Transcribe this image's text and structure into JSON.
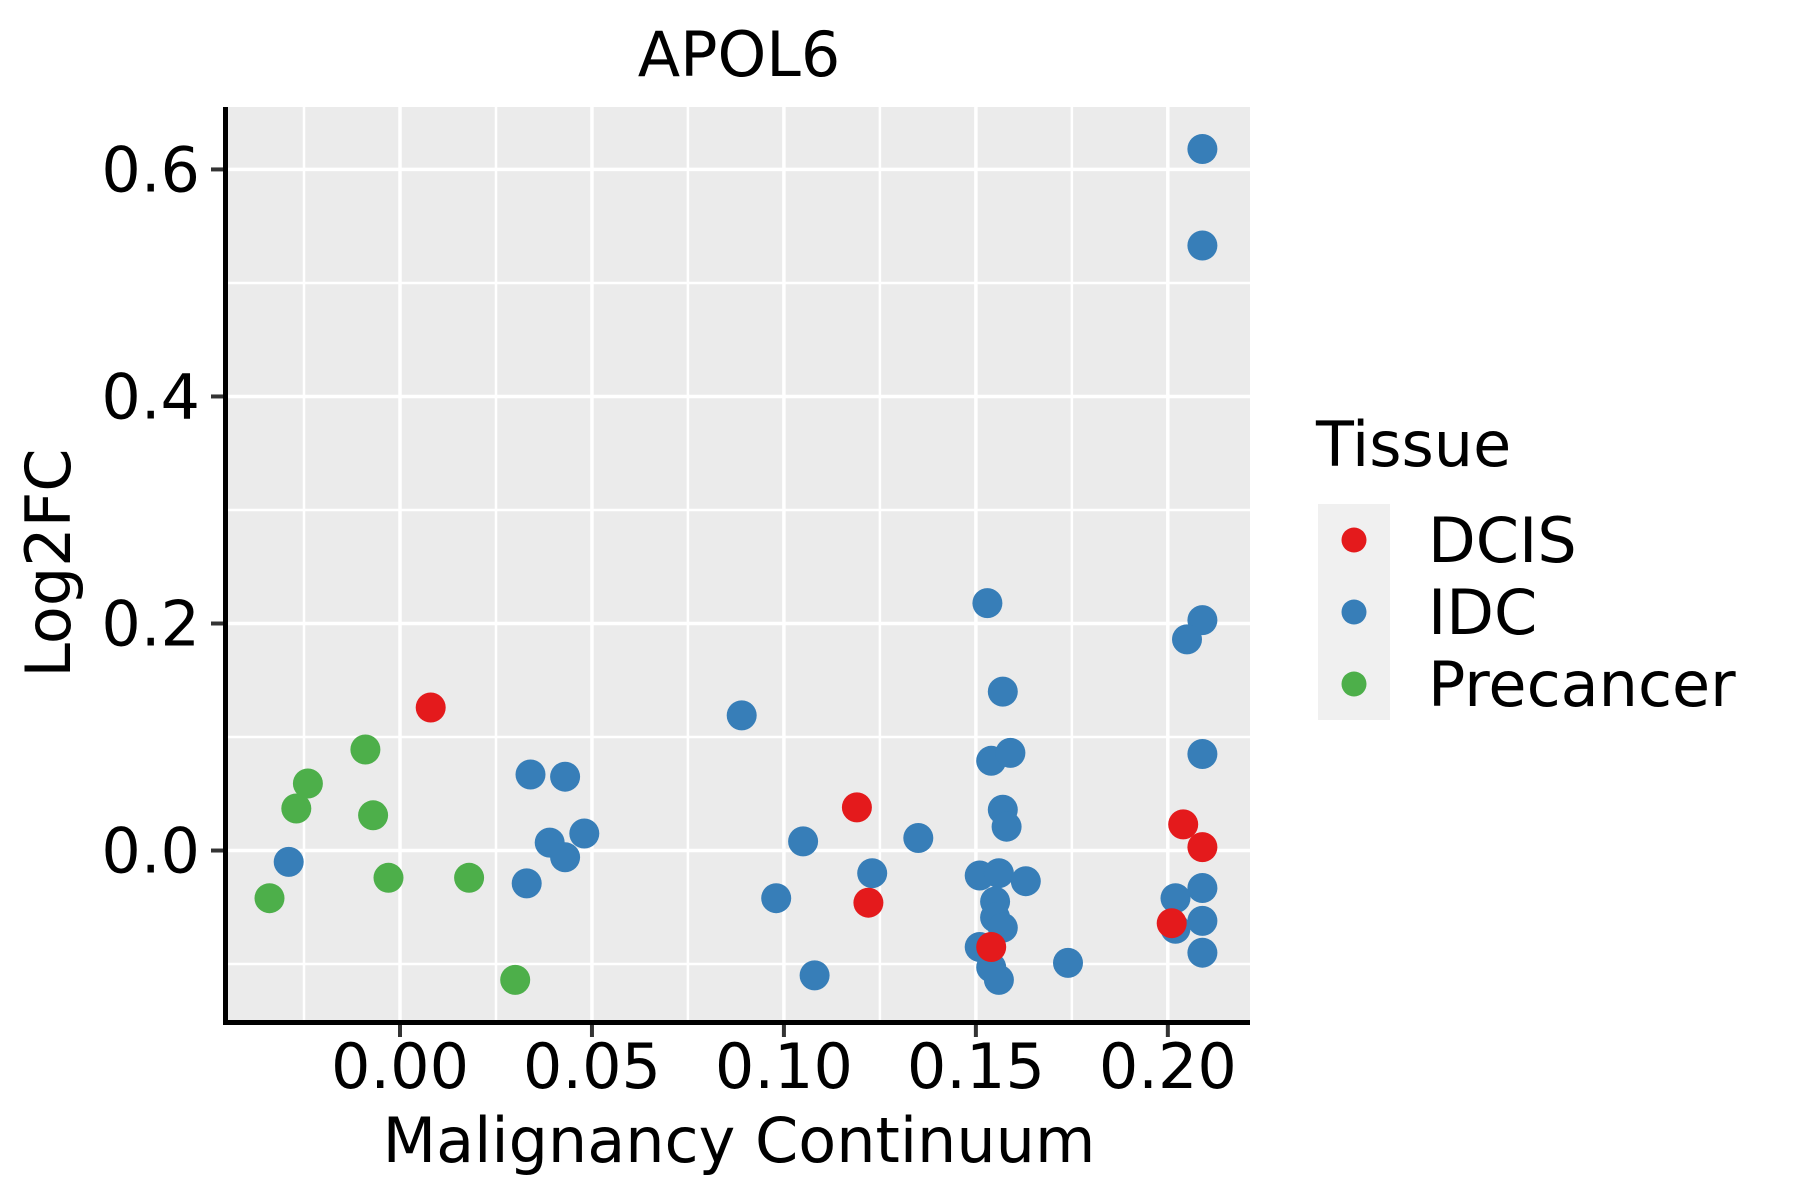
{
  "title": "APOL6",
  "axes": {
    "x_label": "Malignancy Continuum",
    "y_label": "Log2FC"
  },
  "legend": {
    "title": "Tissue",
    "items": [
      {
        "label": "DCIS",
        "color": "#E41A1C"
      },
      {
        "label": "IDC",
        "color": "#377EB8"
      },
      {
        "label": "Precancer",
        "color": "#4DAF4A"
      }
    ]
  },
  "colors": {
    "panel_bg": "#EBEBEB",
    "grid": "#FFFFFF",
    "spine": "#000000",
    "tick": "#333333",
    "legend_key_bg": "#F0F0F0",
    "dcis": "#E41A1C",
    "idc": "#377EB8",
    "precancer": "#4DAF4A"
  },
  "chart_data": {
    "type": "scatter",
    "title": "APOL6",
    "xlabel": "Malignancy Continuum",
    "ylabel": "Log2FC",
    "xlim": [
      -0.0448,
      0.2214
    ],
    "ylim": [
      -0.1493,
      0.655
    ],
    "x_ticks": [
      0.0,
      0.05,
      0.1,
      0.15,
      0.2
    ],
    "x_tick_labels": [
      "0.00",
      "0.05",
      "0.10",
      "0.15",
      "0.20"
    ],
    "x_minor_ticks": [
      -0.025,
      0.025,
      0.075,
      0.125,
      0.175
    ],
    "y_ticks": [
      0.0,
      0.2,
      0.4,
      0.6
    ],
    "y_tick_labels": [
      "0.0",
      "0.2",
      "0.4",
      "0.6"
    ],
    "y_minor_ticks": [
      -0.1,
      0.1,
      0.3,
      0.5
    ],
    "grid": true,
    "legend_position": "right",
    "marker_radius_px": 15,
    "series": [
      {
        "name": "Precancer",
        "color": "#4DAF4A",
        "points": [
          [
            -0.034,
            -0.042
          ],
          [
            -0.027,
            0.037
          ],
          [
            -0.024,
            0.059
          ],
          [
            -0.009,
            0.089
          ],
          [
            -0.007,
            0.031
          ],
          [
            -0.003,
            -0.024
          ],
          [
            0.018,
            -0.024
          ],
          [
            0.03,
            -0.114
          ]
        ]
      },
      {
        "name": "IDC",
        "color": "#377EB8",
        "points": [
          [
            -0.029,
            -0.01
          ],
          [
            0.034,
            0.067
          ],
          [
            0.043,
            0.065
          ],
          [
            0.048,
            0.015
          ],
          [
            0.039,
            0.007
          ],
          [
            0.043,
            -0.006
          ],
          [
            0.033,
            -0.029
          ],
          [
            0.089,
            0.119
          ],
          [
            0.098,
            -0.042
          ],
          [
            0.105,
            0.008
          ],
          [
            0.108,
            -0.11
          ],
          [
            0.123,
            -0.02
          ],
          [
            0.135,
            0.011
          ],
          [
            0.153,
            0.218
          ],
          [
            0.157,
            0.14
          ],
          [
            0.154,
            0.079
          ],
          [
            0.159,
            0.086
          ],
          [
            0.157,
            0.036
          ],
          [
            0.158,
            0.021
          ],
          [
            0.151,
            -0.022
          ],
          [
            0.156,
            -0.02
          ],
          [
            0.163,
            -0.027
          ],
          [
            0.155,
            -0.045
          ],
          [
            0.155,
            -0.059
          ],
          [
            0.157,
            -0.068
          ],
          [
            0.151,
            -0.085
          ],
          [
            0.154,
            -0.103
          ],
          [
            0.156,
            -0.114
          ],
          [
            0.174,
            -0.099
          ],
          [
            0.209,
            0.618
          ],
          [
            0.209,
            0.533
          ],
          [
            0.209,
            0.203
          ],
          [
            0.205,
            0.186
          ],
          [
            0.209,
            0.085
          ],
          [
            0.209,
            -0.033
          ],
          [
            0.202,
            -0.042
          ],
          [
            0.202,
            -0.069
          ],
          [
            0.209,
            -0.062
          ],
          [
            0.209,
            -0.09
          ]
        ]
      },
      {
        "name": "DCIS",
        "color": "#E41A1C",
        "points": [
          [
            0.008,
            0.126
          ],
          [
            0.119,
            0.038
          ],
          [
            0.122,
            -0.046
          ],
          [
            0.154,
            -0.085
          ],
          [
            0.204,
            0.023
          ],
          [
            0.209,
            0.003
          ],
          [
            0.201,
            -0.064
          ]
        ]
      }
    ]
  }
}
